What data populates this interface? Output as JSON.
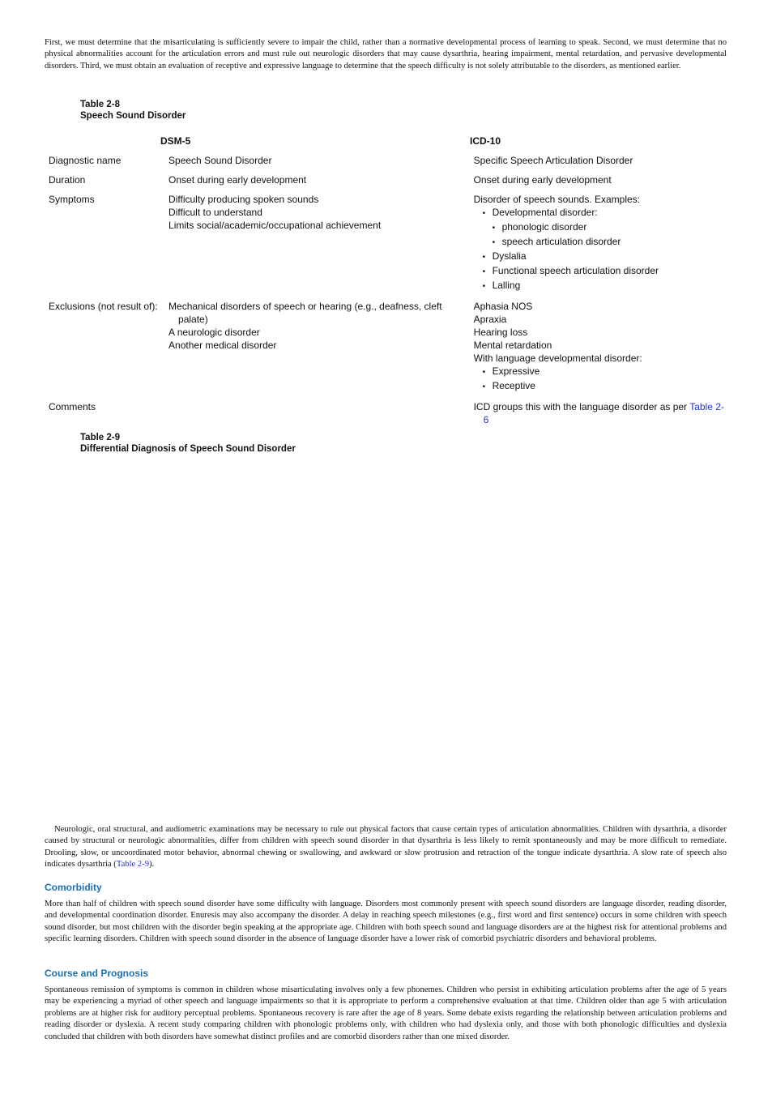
{
  "intro": "First, we must determine that the misarticulating is sufficiently severe to impair the child, rather than a normative developmental process of learning to speak. Second, we must determine that no physical abnormalities account for the articulation errors and must rule out neurologic disorders that may cause dysarthria, hearing impairment, mental retardation, and pervasive developmental disorders. Third, we must obtain an evaluation of receptive and expressive language to determine that the speech difficulty is not solely attributable to the disorders, as mentioned earlier.",
  "table_2_8": {
    "label": "Table 2-8",
    "title": "Speech Sound Disorder",
    "columns": [
      "DSM-5",
      "ICD-10"
    ],
    "rows": [
      {
        "label": "Diagnostic name",
        "dsm": [
          "Speech Sound Disorder"
        ],
        "icd": [
          "Specific Speech Articulation Disorder"
        ]
      },
      {
        "label": "Duration",
        "dsm": [
          "Onset during early development"
        ],
        "icd": [
          "Onset during early development"
        ]
      },
      {
        "label": "Symptoms",
        "dsm": [
          "Difficulty producing spoken sounds",
          "Difficult to understand",
          "Limits social/academic/occupational achievement"
        ],
        "icd": [
          "Disorder of speech sounds. Examples:"
        ],
        "icd_list": [
          {
            "text": "Developmental disorder:",
            "items": [
              "phonologic disorder",
              "speech articulation disorder"
            ]
          },
          {
            "text": "Dyslalia"
          },
          {
            "text": "Functional speech articulation disorder"
          },
          {
            "text": "Lalling"
          }
        ]
      },
      {
        "label": "Exclusions (not result of):",
        "dsm": [
          "Mechanical disorders of speech or hearing (e.g., deafness, cleft palate)",
          "A neurologic disorder",
          "Another medical disorder"
        ],
        "icd": [
          "Aphasia NOS",
          "Apraxia",
          "Hearing loss",
          "Mental retardation",
          "With language developmental disorder:"
        ],
        "icd_list": [
          {
            "text": "Expressive"
          },
          {
            "text": "Receptive"
          }
        ]
      },
      {
        "label": "Comments",
        "icd": [
          "ICD groups this with the language disorder as per "
        ],
        "icd_link": "Table 2-6"
      }
    ]
  },
  "table_2_9": {
    "label": "Table 2-9",
    "title": "Differential Diagnosis of Speech Sound Disorder"
  },
  "exam_paragraph": {
    "text": "Neurologic, oral structural, and audiometric examinations may be necessary to rule out physical factors that cause certain types of articulation abnormalities. Children with dysarthria, a disorder caused by structural or neurologic abnormalities, differ from children with speech sound disorder in that dysarthria is less likely to remit spontaneously and may be more difficult to remediate. Drooling, slow, or uncoordinated motor behavior, abnormal chewing or swallowing, and awkward or slow protrusion and retraction of the tongue indicate dysarthria. A slow rate of speech also indicates dysarthria (",
    "link": "Table 2-9",
    "after": ")."
  },
  "sections": [
    {
      "heading": "Comorbidity",
      "text": "More than half of children with speech sound disorder have some difficulty with language. Disorders most commonly present with speech sound disorders are language disorder, reading disorder, and developmental coordination disorder. Enuresis may also accompany the disorder. A delay in reaching speech milestones (e.g., first word and first sentence) occurs in some children with speech sound disorder, but most children with the disorder begin speaking at the appropriate age. Children with both speech sound and language disorders are at the highest risk for attentional problems and specific learning disorders. Children with speech sound disorder in the absence of language disorder have a lower risk of comorbid psychiatric disorders and behavioral problems."
    },
    {
      "heading": "Course and Prognosis",
      "text": "Spontaneous remission of symptoms is common in children whose misarticulating involves only a few phonemes. Children who persist in exhibiting articulation problems after the age of 5 years may be experiencing a myriad of other speech and language impairments so that it is appropriate to perform a comprehensive evaluation at that time. Children older than age 5 with articulation problems are at higher risk for auditory perceptual problems. Spontaneous recovery is rare after the age of 8 years. Some debate exists regarding the relationship between articulation problems and reading disorder or dyslexia. A recent study comparing children with phonologic problems only, with children who had dyslexia only, and those with both phonologic difficulties and dyslexia concluded that children with both disorders have somewhat distinct profiles and are comorbid disorders rather than one mixed disorder."
    }
  ]
}
